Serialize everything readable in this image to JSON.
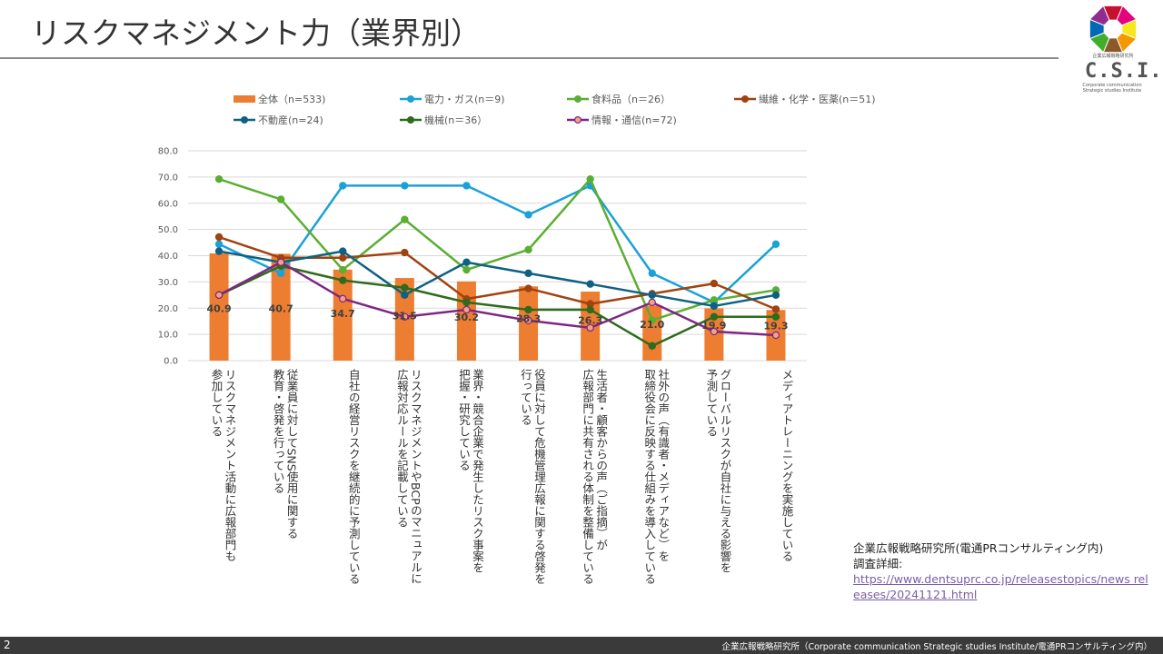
{
  "page": {
    "title": "リスクマネジメント力（業界別）",
    "page_number": "2",
    "footer_org": "企業広報戦略研究所（Corporate communication Strategic studies Institute/電通PRコンサルティング内）"
  },
  "logo": {
    "jp_name": "企業広報戦略研究所",
    "acronym": "C.S.I.",
    "english_line1": "Corporate communication",
    "english_line2": "Strategic studies Institute",
    "segment_colors": [
      "#c8102e",
      "#e4007f",
      "#f8e71c",
      "#f39800",
      "#8b5a2b",
      "#3fae2a",
      "#0068b7",
      "#8e2c8f"
    ]
  },
  "source": {
    "line1": "企業広報戦略研究所(電通PRコンサルティング内)",
    "line2": "調査詳細:",
    "link": "https://www.dentsuprc.co.jp/releasestopics/news releases/20241121.html"
  },
  "chart_data": {
    "type": "bar+line",
    "title": "",
    "xlabel": "",
    "ylabel": "",
    "ylim": [
      0,
      80
    ],
    "yticks": [
      "0.0",
      "10.0",
      "20.0",
      "30.0",
      "40.0",
      "50.0",
      "60.0",
      "70.0",
      "80.0"
    ],
    "grid": true,
    "legend_position": "top",
    "categories": [
      "リスクマネジメント活動に広報部門も\n参加している",
      "従業員に対してSNS使用に関する\n教育・啓発を行っている",
      "自社の経営リスクを継続的に予測している",
      "リスクマネジメントやBCPのマニュアルに\n広報対応ルールを記載している",
      "業界・競合企業で発生したリスク事案を\n把握・研究している",
      "役員に対して危機管理広報に関する啓発を\n行っている",
      "生活者・顧客からの声（ご指摘）が\n広報部門に共有される体制を整備している",
      "社外の声（有識者・メディアなど）を\n取締役会に反映する仕組みを導入している",
      "グローバルリスクが自社に与える影響を\n予測している",
      "メディアトレーニングを実施している"
    ],
    "bar_series": {
      "name": "全体（n=533)",
      "color": "#ed7d31",
      "values": [
        40.9,
        40.7,
        34.7,
        31.5,
        30.2,
        28.3,
        26.3,
        21.0,
        19.9,
        19.3
      ],
      "data_labels": [
        "40.9",
        "40.7",
        "34.7",
        "31.5",
        "30.2",
        "28.3",
        "26.3",
        "21.0",
        "19.9",
        "19.3"
      ]
    },
    "series": [
      {
        "name": "電力・ガス(n＝9)",
        "color": "#1ba1d8",
        "marker_fill": "#1ba1d8",
        "values": [
          44.4,
          33.3,
          66.7,
          66.7,
          66.7,
          55.6,
          66.7,
          33.3,
          22.2,
          44.4
        ]
      },
      {
        "name": "食料品（n＝26）",
        "color": "#5aae32",
        "marker_fill": "#5aae32",
        "values": [
          69.2,
          61.5,
          34.6,
          53.8,
          34.6,
          42.3,
          69.2,
          15.4,
          23.1,
          26.9
        ]
      },
      {
        "name": "繊維・化学・医薬(n＝51)",
        "color": "#a0430f",
        "marker_fill": "#a0430f",
        "values": [
          47.1,
          39.2,
          39.2,
          41.2,
          23.5,
          27.5,
          21.6,
          25.5,
          29.4,
          19.6
        ]
      },
      {
        "name": "不動産(n=24)",
        "color": "#0e6183",
        "marker_fill": "#0e6183",
        "values": [
          41.7,
          37.5,
          41.7,
          25.0,
          37.5,
          33.3,
          29.2,
          25.0,
          20.8,
          25.0
        ]
      },
      {
        "name": "機械(n＝36）",
        "color": "#2e6b1c",
        "marker_fill": "#2e6b1c",
        "values": [
          25.0,
          36.1,
          30.6,
          27.8,
          22.2,
          19.4,
          19.4,
          5.6,
          16.7,
          16.7
        ]
      },
      {
        "name": "情報・通信(n=72)",
        "color": "#7d2784",
        "marker_fill": "#f4a284",
        "values": [
          25.0,
          37.5,
          23.6,
          16.7,
          19.4,
          15.3,
          12.5,
          22.2,
          11.1,
          9.7
        ]
      }
    ]
  }
}
